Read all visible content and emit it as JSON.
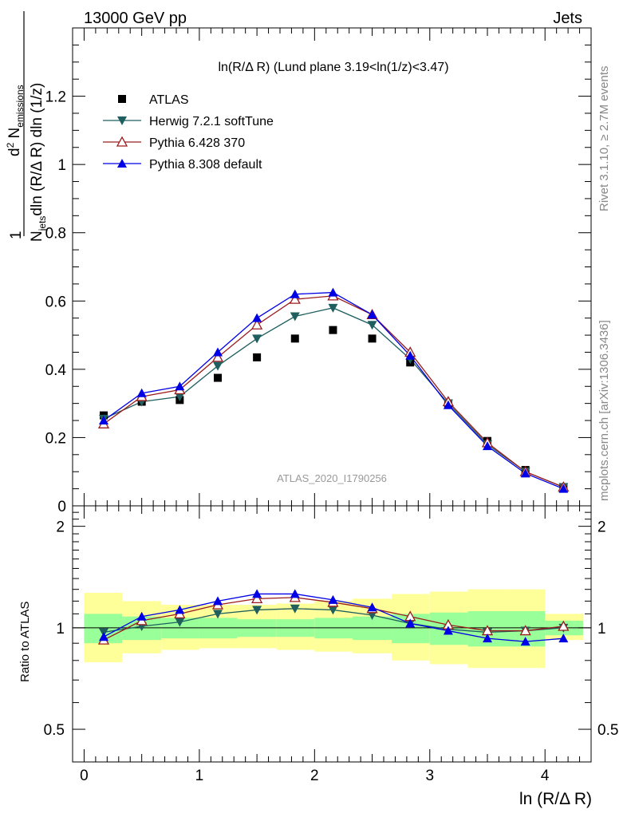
{
  "header": {
    "left": "13000 GeV pp",
    "right": "Jets"
  },
  "side_text": {
    "top": "Rivet 3.1.10, ≥ 2.7M events",
    "bottom": "mcplots.cern.ch [arXiv:1306.3436]"
  },
  "upper_title": "ln(R/Δ R) (Lund plane 3.19<ln(1/z)<3.47)",
  "watermark": "ATLAS_2020_I1790256",
  "y_label_upper": "1/N_jets d²N_emissions / dln(R/ΔR) dln(1/z)",
  "y_label_lower": "Ratio to ATLAS",
  "x_label": "ln (R/Δ R)",
  "colors": {
    "atlas": "#000000",
    "herwig": "#1f5f5f",
    "pythia6": "#9b1c1c",
    "pythia8": "#0000e6",
    "band_inner": "#99ff99",
    "band_outer": "#ffff99"
  },
  "chart_data": [
    {
      "type": "line",
      "panel": "main",
      "title": "ln(R/Δ R) (Lund plane 3.19<ln(1/z)<3.47)",
      "xlabel": "ln (R/Δ R)",
      "ylabel": "1/N_jets d²N_emissions / dln(R/ΔR) dln(1/z)",
      "xlim": [
        -0.1,
        4.4
      ],
      "ylim": [
        0.0,
        1.4
      ],
      "y_ticks": [
        "0",
        "0.2",
        "0.4",
        "0.6",
        "0.8",
        "1",
        "1.2"
      ],
      "legend_position": "top-left",
      "x": [
        0.17,
        0.5,
        0.83,
        1.16,
        1.5,
        1.83,
        2.16,
        2.5,
        2.83,
        3.16,
        3.5,
        3.83,
        4.16
      ],
      "series": [
        {
          "name": "ATLAS",
          "marker": "square",
          "values": [
            0.265,
            0.305,
            0.31,
            0.375,
            0.435,
            0.49,
            0.515,
            0.49,
            0.42,
            0.3,
            0.19,
            0.105,
            0.055
          ]
        },
        {
          "name": "Herwig 7.2.1 softTune",
          "marker": "triangle-down",
          "values": [
            0.255,
            0.305,
            0.32,
            0.41,
            0.49,
            0.555,
            0.58,
            0.53,
            0.43,
            0.3,
            0.18,
            0.1,
            0.055
          ]
        },
        {
          "name": "Pythia 6.428 370",
          "marker": "triangle-open",
          "values": [
            0.24,
            0.32,
            0.34,
            0.435,
            0.53,
            0.605,
            0.615,
            0.56,
            0.45,
            0.305,
            0.185,
            0.1,
            0.055
          ]
        },
        {
          "name": "Pythia 8.308 default",
          "marker": "triangle-up",
          "values": [
            0.25,
            0.33,
            0.35,
            0.45,
            0.55,
            0.62,
            0.625,
            0.56,
            0.44,
            0.295,
            0.175,
            0.095,
            0.05
          ]
        }
      ]
    },
    {
      "type": "line",
      "panel": "ratio",
      "ylabel": "Ratio to ATLAS",
      "xlabel": "ln (R/Δ R)",
      "xlim": [
        -0.1,
        4.4
      ],
      "ylim": [
        0.4,
        2.3
      ],
      "log_y": true,
      "y_ticks": [
        "0.5",
        "1",
        "2"
      ],
      "x_ticks": [
        "0",
        "1",
        "2",
        "3",
        "4"
      ],
      "x": [
        0.17,
        0.5,
        0.83,
        1.16,
        1.5,
        1.83,
        2.16,
        2.5,
        2.83,
        3.16,
        3.5,
        3.83,
        4.16
      ],
      "band_bins": [
        0.0,
        0.33,
        0.67,
        1.0,
        1.33,
        1.67,
        2.0,
        2.33,
        2.67,
        3.0,
        3.33,
        3.67,
        4.0,
        4.33
      ],
      "band_inner": {
        "lo": [
          0.9,
          0.92,
          0.93,
          0.93,
          0.94,
          0.94,
          0.93,
          0.92,
          0.9,
          0.89,
          0.88,
          0.88,
          0.95
        ],
        "hi": [
          1.1,
          1.08,
          1.07,
          1.07,
          1.06,
          1.06,
          1.07,
          1.08,
          1.1,
          1.11,
          1.12,
          1.12,
          1.05
        ]
      },
      "band_outer": {
        "lo": [
          0.79,
          0.84,
          0.86,
          0.87,
          0.87,
          0.86,
          0.85,
          0.84,
          0.8,
          0.78,
          0.76,
          0.76,
          0.92
        ],
        "hi": [
          1.27,
          1.2,
          1.17,
          1.17,
          1.17,
          1.18,
          1.2,
          1.22,
          1.26,
          1.28,
          1.3,
          1.3,
          1.1
        ]
      },
      "series": [
        {
          "name": "Herwig 7.2.1 softTune",
          "marker": "triangle-down",
          "values": [
            0.97,
            1.01,
            1.04,
            1.1,
            1.13,
            1.14,
            1.13,
            1.09,
            1.03,
            0.99,
            0.97,
            0.98,
            1.0
          ]
        },
        {
          "name": "Pythia 6.428 370",
          "marker": "triangle-open",
          "values": [
            0.92,
            1.05,
            1.1,
            1.17,
            1.22,
            1.23,
            1.19,
            1.14,
            1.08,
            1.02,
            0.98,
            0.98,
            1.01
          ]
        },
        {
          "name": "Pythia 8.308 default",
          "marker": "triangle-up",
          "values": [
            0.94,
            1.08,
            1.13,
            1.2,
            1.26,
            1.26,
            1.21,
            1.15,
            1.03,
            0.98,
            0.93,
            0.91,
            0.93
          ]
        }
      ]
    }
  ]
}
